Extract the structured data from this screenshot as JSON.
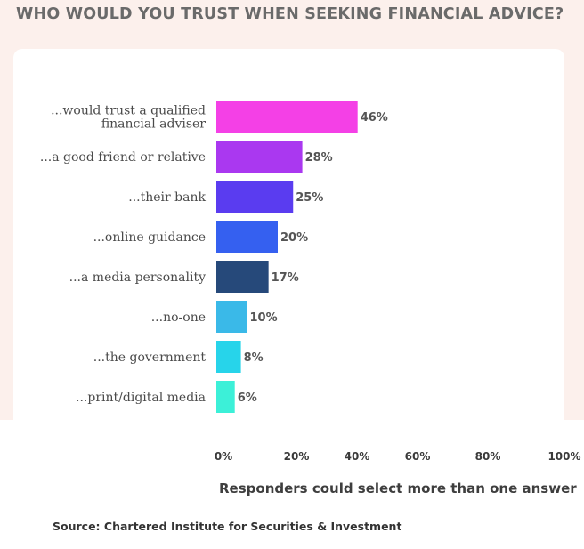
{
  "header": {
    "title": "WHO WOULD YOU TRUST WHEN SEEKING FINANCIAL ADVICE?"
  },
  "chart_data": {
    "type": "bar",
    "orientation": "horizontal",
    "categories": [
      "...would trust a qualified financial adviser",
      "...a good friend or relative",
      "...their bank",
      "...online guidance",
      "...a media personality",
      "...no-one",
      "...the government",
      "...print/digital media"
    ],
    "category_lines": [
      [
        "...would trust a qualified",
        "financial adviser"
      ],
      [
        "...a good friend or relative"
      ],
      [
        "...their bank"
      ],
      [
        "...online guidance"
      ],
      [
        "...a media personality"
      ],
      [
        "...no-one"
      ],
      [
        "...the government"
      ],
      [
        "...print/digital media"
      ]
    ],
    "values": [
      46,
      28,
      25,
      20,
      17,
      10,
      8,
      6
    ],
    "value_labels": [
      "46%",
      "28%",
      "25%",
      "20%",
      "17%",
      "10%",
      "8%",
      "6%"
    ],
    "colors": [
      "#f440e6",
      "#aa38f0",
      "#5a3cf0",
      "#3560f0",
      "#26497a",
      "#3ab9e8",
      "#27d4ea",
      "#3cf0d8"
    ],
    "x_tick_labels": [
      "0%",
      "20%",
      "40%",
      "60%",
      "80%",
      "100%"
    ],
    "xlim": [
      0,
      100
    ],
    "grid": false,
    "legend": "none"
  },
  "footer": {
    "note": "Responders could select more than one answer",
    "source": "Source: Chartered Institute for Securities & Investment"
  }
}
